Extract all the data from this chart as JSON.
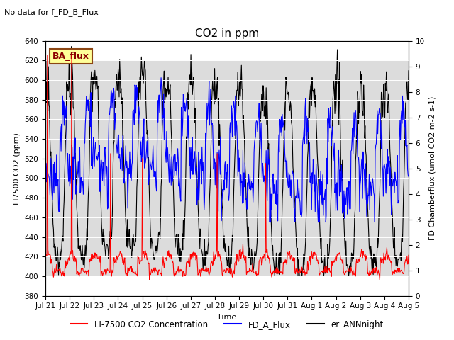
{
  "title": "CO2 in ppm",
  "top_left_text": "No data for f_FD_B_Flux",
  "ba_flux_label": "BA_flux",
  "xlabel": "Time",
  "ylabel_left": "LI7500 CO2 (ppm)",
  "ylabel_right": "FD Chamberflux (umol CO2 m-2 s-1)",
  "ylim_left": [
    380,
    640
  ],
  "ylim_right": [
    0.0,
    10.0
  ],
  "yticks_left": [
    380,
    400,
    420,
    440,
    460,
    480,
    500,
    520,
    540,
    560,
    580,
    600,
    620,
    640
  ],
  "yticks_right": [
    0.0,
    1.0,
    2.0,
    3.0,
    4.0,
    5.0,
    6.0,
    7.0,
    8.0,
    9.0,
    10.0
  ],
  "xtick_labels": [
    "Jul 21",
    "Jul 22",
    "Jul 23",
    "Jul 24",
    "Jul 25",
    "Jul 26",
    "Jul 27",
    "Jul 28",
    "Jul 29",
    "Jul 30",
    "Jul 31",
    "Aug 1",
    "Aug 2",
    "Aug 3",
    "Aug 4",
    "Aug 5"
  ],
  "legend_entries": [
    "LI-7500 CO2 Concentration",
    "FD_A_Flux",
    "er_ANNnight"
  ],
  "legend_colors": [
    "red",
    "blue",
    "black"
  ],
  "shaded_band": [
    400,
    620
  ],
  "color_red": "#FF0000",
  "color_blue": "#0000FF",
  "color_black": "#000000",
  "background_color": "#FFFFFF",
  "shaded_color": "#DCDCDC",
  "ba_flux_box_color": "#FFFF99",
  "ba_flux_text_color": "#8B0000",
  "ba_flux_edge_color": "#8B4513",
  "title_fontsize": 11,
  "label_fontsize": 8,
  "tick_fontsize": 7.5,
  "legend_fontsize": 8.5,
  "line_width": 0.8
}
